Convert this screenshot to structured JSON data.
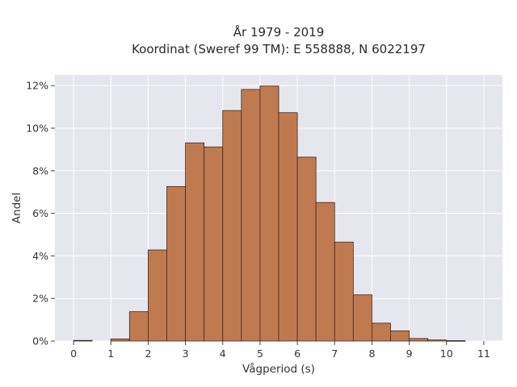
{
  "chart_data": {
    "type": "bar",
    "title": [
      "År 1979 - 2019",
      "Koordinat (Sweref 99 TM): E 558888, N 6022197"
    ],
    "xlabel": "Vågperiod (s)",
    "ylabel": "Andel",
    "xlim": [
      -0.5,
      11.5
    ],
    "ylim": [
      0,
      0.125
    ],
    "x_ticks": [
      0,
      1,
      2,
      3,
      4,
      5,
      6,
      7,
      8,
      9,
      10,
      11
    ],
    "y_ticks": [
      0,
      0.02,
      0.04,
      0.06,
      0.08,
      0.1,
      0.12
    ],
    "y_tick_labels": [
      "0%",
      "2%",
      "4%",
      "6%",
      "8%",
      "10%",
      "12%"
    ],
    "bin_width": 0.5,
    "bins": [
      {
        "x0": 0.0,
        "x1": 0.5,
        "value": 0.0003
      },
      {
        "x0": 0.5,
        "x1": 1.0,
        "value": 0.0
      },
      {
        "x0": 1.0,
        "x1": 1.5,
        "value": 0.001
      },
      {
        "x0": 1.5,
        "x1": 2.0,
        "value": 0.0138
      },
      {
        "x0": 2.0,
        "x1": 2.5,
        "value": 0.0428
      },
      {
        "x0": 2.5,
        "x1": 3.0,
        "value": 0.0726
      },
      {
        "x0": 3.0,
        "x1": 3.5,
        "value": 0.0931
      },
      {
        "x0": 3.5,
        "x1": 4.0,
        "value": 0.0912
      },
      {
        "x0": 4.0,
        "x1": 4.5,
        "value": 0.1083
      },
      {
        "x0": 4.5,
        "x1": 5.0,
        "value": 0.1182
      },
      {
        "x0": 5.0,
        "x1": 5.5,
        "value": 0.1198
      },
      {
        "x0": 5.5,
        "x1": 6.0,
        "value": 0.1073
      },
      {
        "x0": 6.0,
        "x1": 6.5,
        "value": 0.0864
      },
      {
        "x0": 6.5,
        "x1": 7.0,
        "value": 0.0651
      },
      {
        "x0": 7.0,
        "x1": 7.5,
        "value": 0.0465
      },
      {
        "x0": 7.5,
        "x1": 8.0,
        "value": 0.0217
      },
      {
        "x0": 8.0,
        "x1": 8.5,
        "value": 0.0084
      },
      {
        "x0": 8.5,
        "x1": 9.0,
        "value": 0.0048
      },
      {
        "x0": 9.0,
        "x1": 9.5,
        "value": 0.0012
      },
      {
        "x0": 9.5,
        "x1": 10.0,
        "value": 0.0005
      },
      {
        "x0": 10.0,
        "x1": 10.5,
        "value": 0.0002
      }
    ],
    "grid": true,
    "colors": {
      "bar_fill": "#c07a50",
      "bar_edge": "#3d2a1f",
      "plot_background": "#e6e6ef",
      "grid": "#ffffff"
    }
  }
}
